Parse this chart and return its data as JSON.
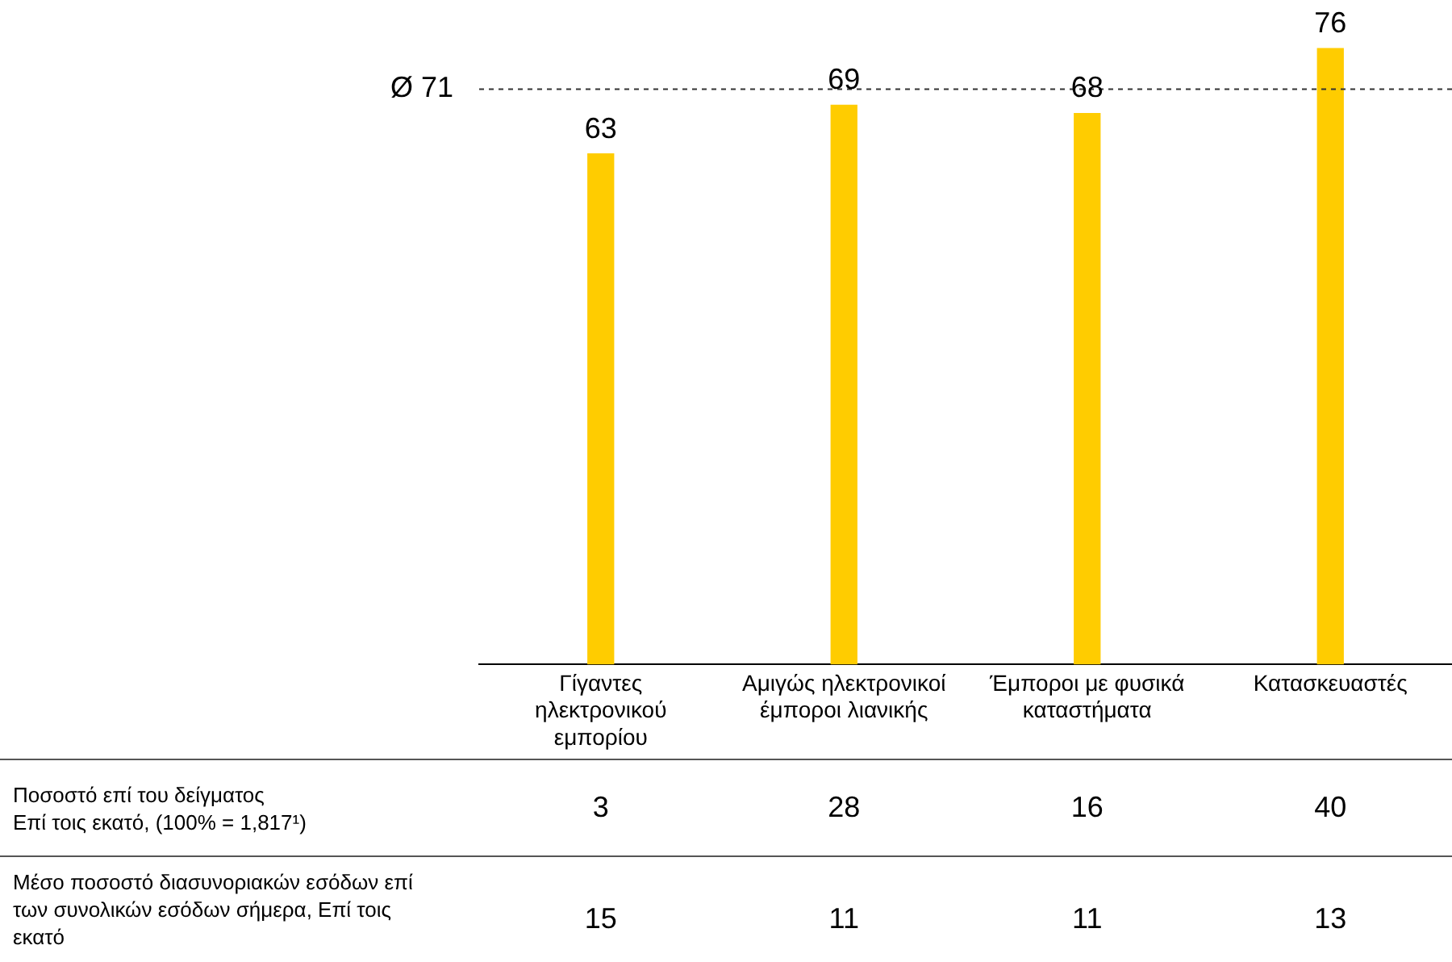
{
  "chart_data": {
    "type": "bar",
    "categories": [
      "Γίγαντες ηλεκτρονικού εμπορίου",
      "Αμιγώς ηλεκτρονικοί έμποροι λιανικής",
      "Έμποροι με φυσικά καταστήματα",
      "Κατασκευαστές"
    ],
    "values": [
      63,
      69,
      68,
      76
    ],
    "color": "#ffcc00",
    "data_labels": true,
    "ylim": [
      0,
      82
    ],
    "grid": false,
    "legend": false,
    "ref_lines": [
      {
        "axis": "y",
        "value": 71,
        "label": "Ø 71",
        "line_style": "dashed"
      }
    ],
    "annotations": [
      "Ποσοστό επί του δείγματος\nΕπί τοις εκατό, (100% = 1,817¹)",
      "3",
      "28",
      "16",
      "40",
      "Μέσο ποσοστό διασυνοριακών εσόδων επί των συνολικών εσόδων σήμερα, Επί τοις εκατό",
      "15",
      "11",
      "11",
      "13"
    ]
  }
}
